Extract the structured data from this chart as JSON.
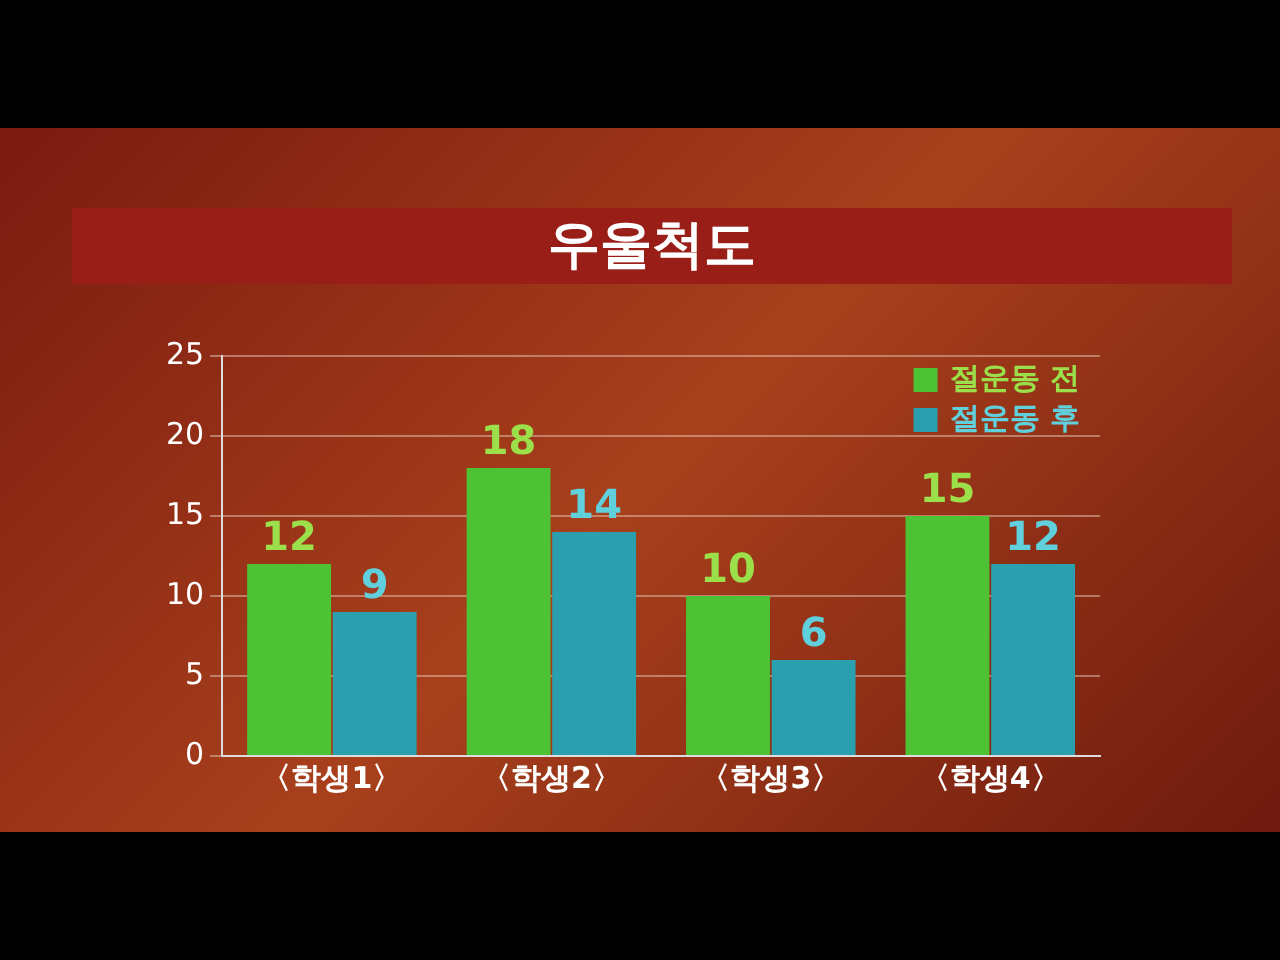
{
  "chart_data": {
    "type": "bar",
    "title": "우울척도",
    "categories": [
      "〈학생1〉",
      "〈학생2〉",
      "〈학생3〉",
      "〈학생4〉"
    ],
    "series": [
      {
        "name": "절운동 전",
        "color": "#4cc234",
        "values": [
          12,
          18,
          10,
          15
        ]
      },
      {
        "name": "절운동 후",
        "color": "#2a9fae",
        "values": [
          9,
          14,
          6,
          12
        ]
      }
    ],
    "ylim": [
      0,
      25
    ],
    "yticks": [
      0,
      5,
      10,
      15,
      20,
      25
    ],
    "grid": "y",
    "legend": "top right",
    "data_labels": true
  }
}
